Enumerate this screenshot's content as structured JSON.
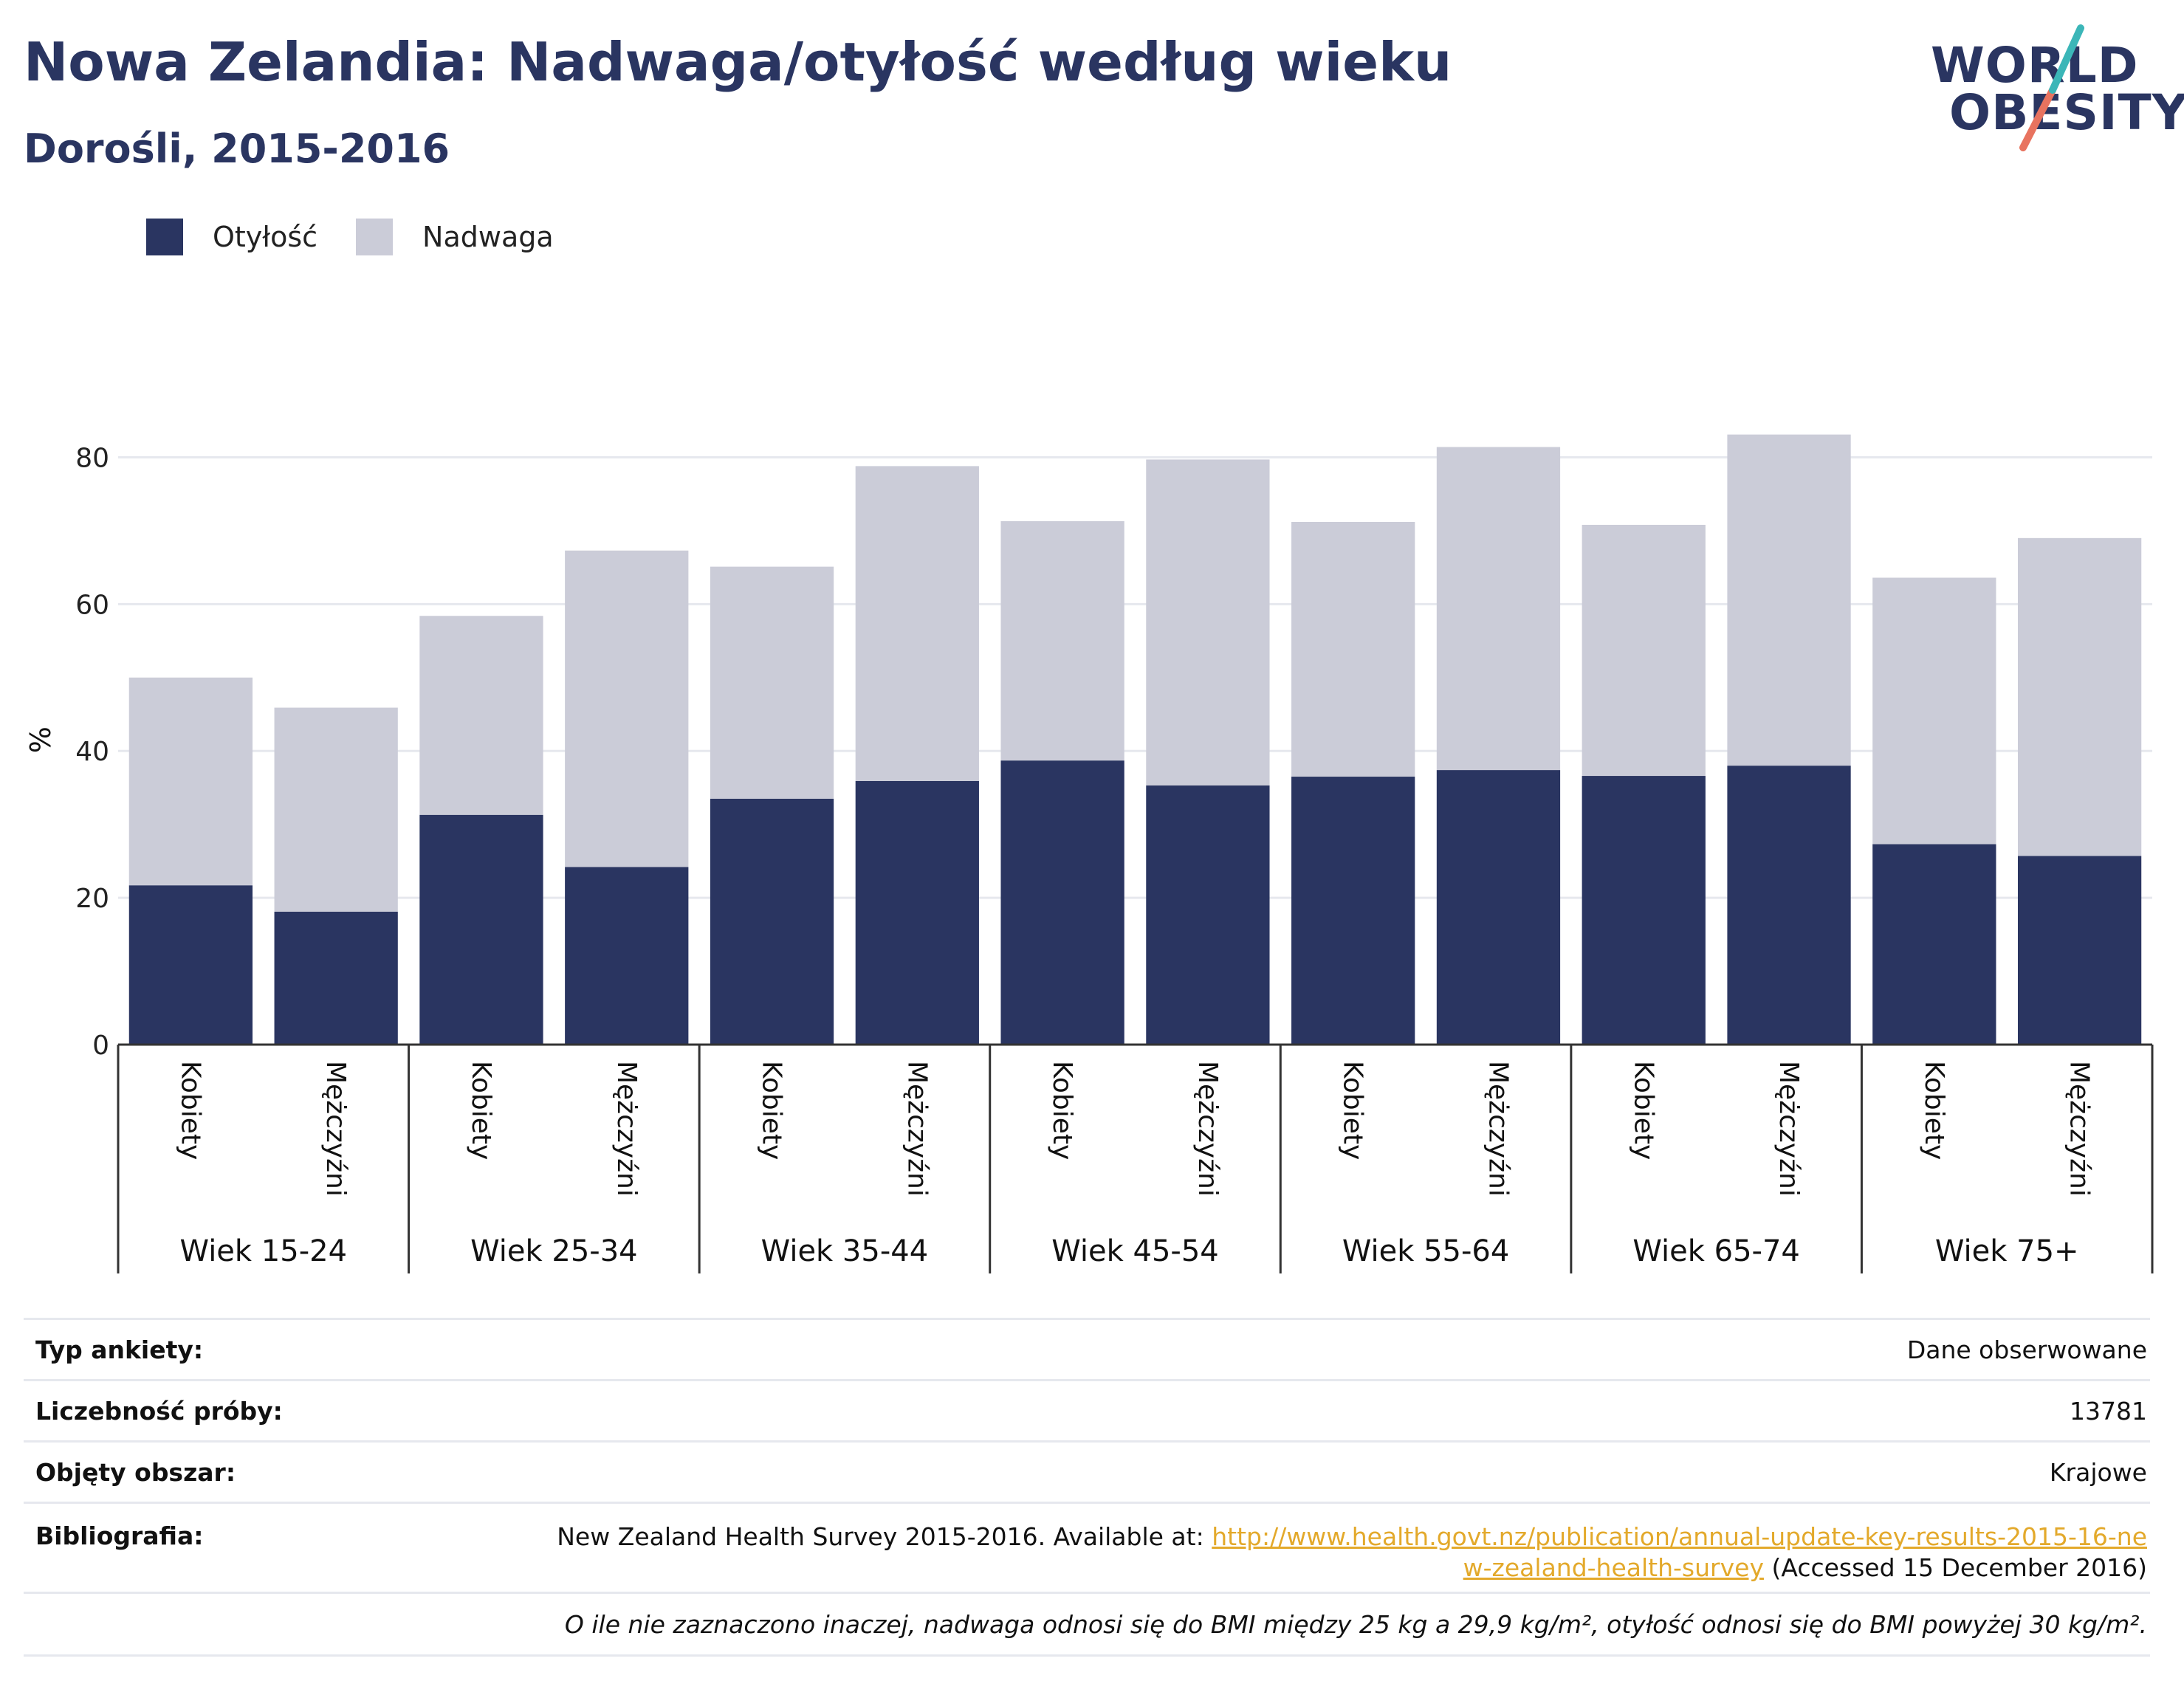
{
  "header": {
    "title": "Nowa Zelandia: Nadwaga/otyłość według wieku",
    "subtitle": "Dorośli, 2015-2016"
  },
  "logo": {
    "line1": "WORLD",
    "line2": "OBESITY"
  },
  "colors": {
    "obesity": "#2a3561",
    "overweight": "#cbccd8",
    "accent_teal": "#3bb6b8",
    "accent_red": "#e8735f",
    "link": "#e3a92b"
  },
  "legend": {
    "obesity": "Otyłość",
    "overweight": "Nadwaga"
  },
  "chart_data": {
    "type": "bar",
    "stacked": true,
    "ylabel": "%",
    "ylim": [
      0,
      90
    ],
    "yticks": [
      0,
      20,
      40,
      60,
      80
    ],
    "grid": true,
    "legend_position": "top-left",
    "groups": [
      "Wiek 15-24",
      "Wiek 25-34",
      "Wiek 35-44",
      "Wiek 45-54",
      "Wiek 55-64",
      "Wiek 65-74",
      "Wiek 75+"
    ],
    "subcategories": [
      "Kobiety",
      "Mężczyźni"
    ],
    "series": [
      {
        "name": "Otyłość",
        "values": [
          21.7,
          18.1,
          31.3,
          24.2,
          33.5,
          35.9,
          38.7,
          35.3,
          36.5,
          37.4,
          36.6,
          38.0,
          27.3,
          25.7
        ]
      },
      {
        "name": "Nadwaga",
        "values": [
          28.3,
          27.8,
          27.1,
          43.1,
          31.6,
          42.9,
          32.6,
          44.4,
          34.7,
          44.0,
          34.2,
          45.1,
          36.3,
          43.3
        ]
      }
    ]
  },
  "info": {
    "survey_type_label": "Typ ankiety:",
    "survey_type_value": "Dane obserwowane",
    "sample_size_label": "Liczebność próby:",
    "sample_size_value": "13781",
    "coverage_label": "Objęty obszar:",
    "coverage_value": "Krajowe",
    "bibliography_label": "Bibliografia:",
    "bibliography_text": "New Zealand Health Survey 2015-2016. Available at: ",
    "bibliography_link": "http://www.health.govt.nz/publication/annual-update-key-results-2015-16-new-zealand-health-survey",
    "bibliography_suffix": " (Accessed 15 December 2016)",
    "note": "O ile nie zaznaczono inaczej, nadwaga odnosi się do BMI między 25 kg a 29,9 kg/m², otyłość odnosi się do BMI powyżej 30 kg/m²."
  }
}
